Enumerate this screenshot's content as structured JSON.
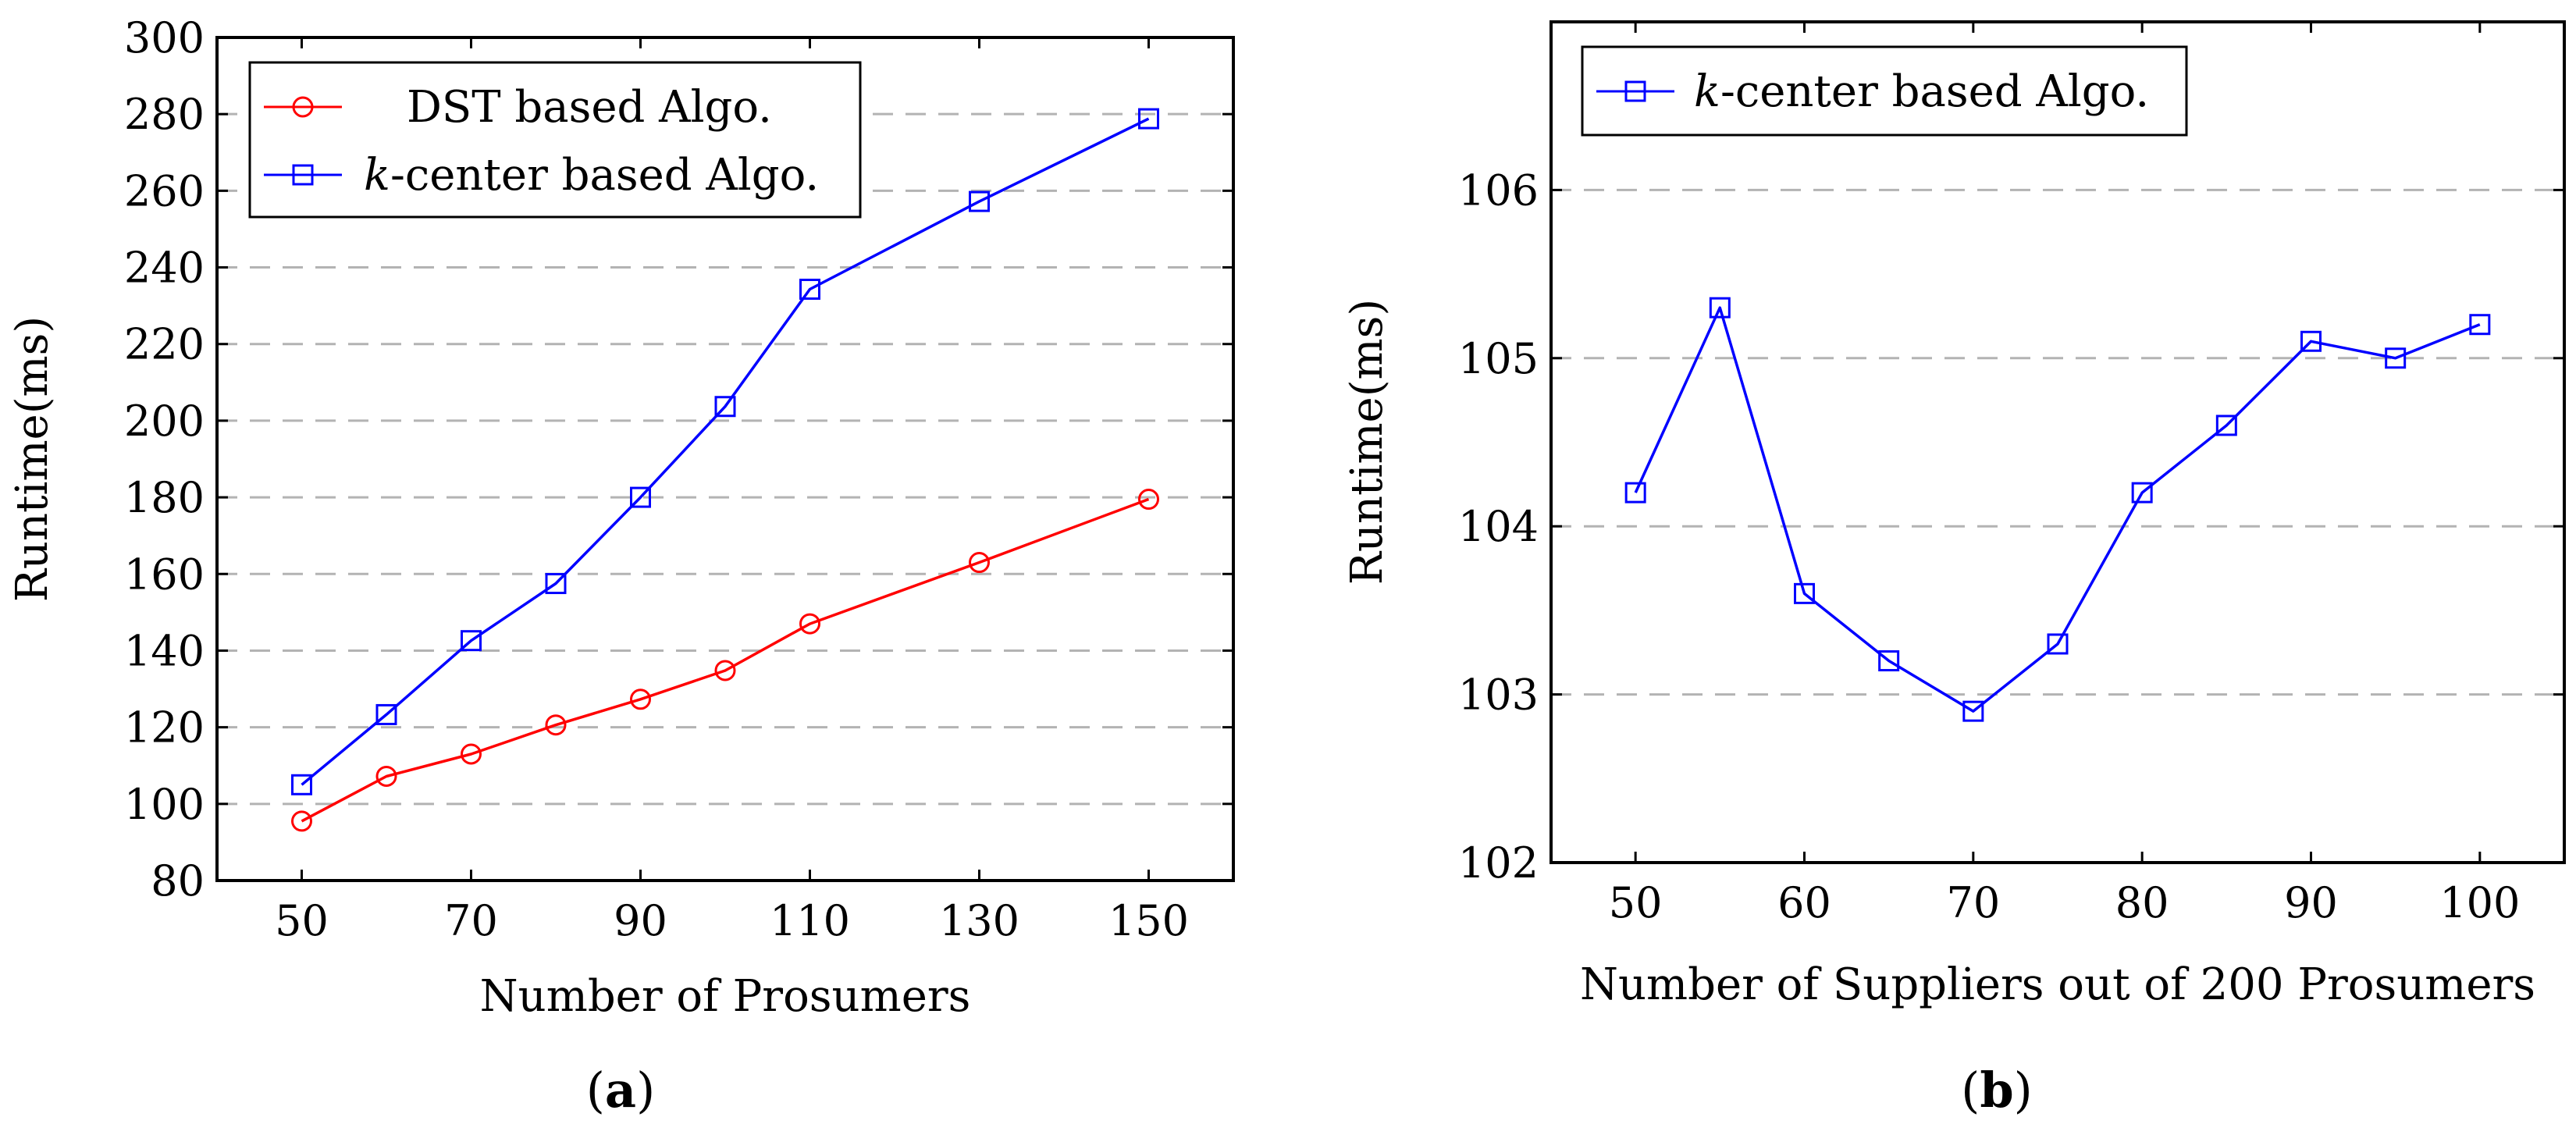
{
  "chart_data": [
    {
      "type": "line",
      "caption": {
        "open": "(",
        "letter": "a",
        "close": ")"
      },
      "xlabel": "Number of Prosumers",
      "ylabel": "Runtime(ms)",
      "xlim": [
        40,
        160
      ],
      "ylim": [
        80,
        300
      ],
      "xticks": [
        50,
        70,
        90,
        110,
        130,
        150
      ],
      "yticks": [
        80,
        100,
        120,
        140,
        160,
        180,
        200,
        220,
        240,
        260,
        280,
        300
      ],
      "grid": "horizontal dashed",
      "legend_position": "top-left",
      "series": [
        {
          "key": "dst",
          "name": "DST based Algo.",
          "legend_text": "DST based Algo.",
          "color": "#ff0000",
          "marker": "circle",
          "x": [
            50,
            60,
            70,
            80,
            90,
            100,
            110,
            130,
            150
          ],
          "y": [
            95.5,
            107.2,
            113,
            120.6,
            127.3,
            134.8,
            147,
            163,
            179.5
          ]
        },
        {
          "key": "kcenter",
          "name": "k-center based Algo.",
          "legend_italic": "k",
          "legend_text": "-center based Algo.",
          "color": "#0000ff",
          "marker": "square",
          "x": [
            50,
            60,
            70,
            80,
            90,
            100,
            110,
            130,
            150
          ],
          "y": [
            105,
            123.3,
            142.6,
            157.5,
            180,
            203.7,
            234.3,
            257.2,
            278.8
          ]
        }
      ]
    },
    {
      "type": "line",
      "caption": {
        "open": "(",
        "letter": "b",
        "close": ")"
      },
      "xlabel": "Number of Suppliers out of 200 Prosumers",
      "ylabel": "Runtime(ms)",
      "xlim": [
        45,
        105
      ],
      "ylim": [
        102,
        107
      ],
      "xticks": [
        50,
        60,
        70,
        80,
        90,
        100
      ],
      "yticks": [
        102,
        103,
        104,
        105,
        106
      ],
      "grid": "horizontal dashed",
      "legend_position": "top-left",
      "series": [
        {
          "key": "kcenter",
          "name": "k-center based Algo.",
          "legend_italic": "k",
          "legend_text": "-center based Algo.",
          "color": "#0000ff",
          "marker": "square",
          "x": [
            50,
            55,
            60,
            65,
            70,
            75,
            80,
            85,
            90,
            95,
            100
          ],
          "y": [
            104.2,
            105.3,
            103.6,
            103.2,
            102.9,
            103.3,
            104.2,
            104.6,
            105.1,
            105.0,
            105.2
          ]
        }
      ]
    }
  ]
}
